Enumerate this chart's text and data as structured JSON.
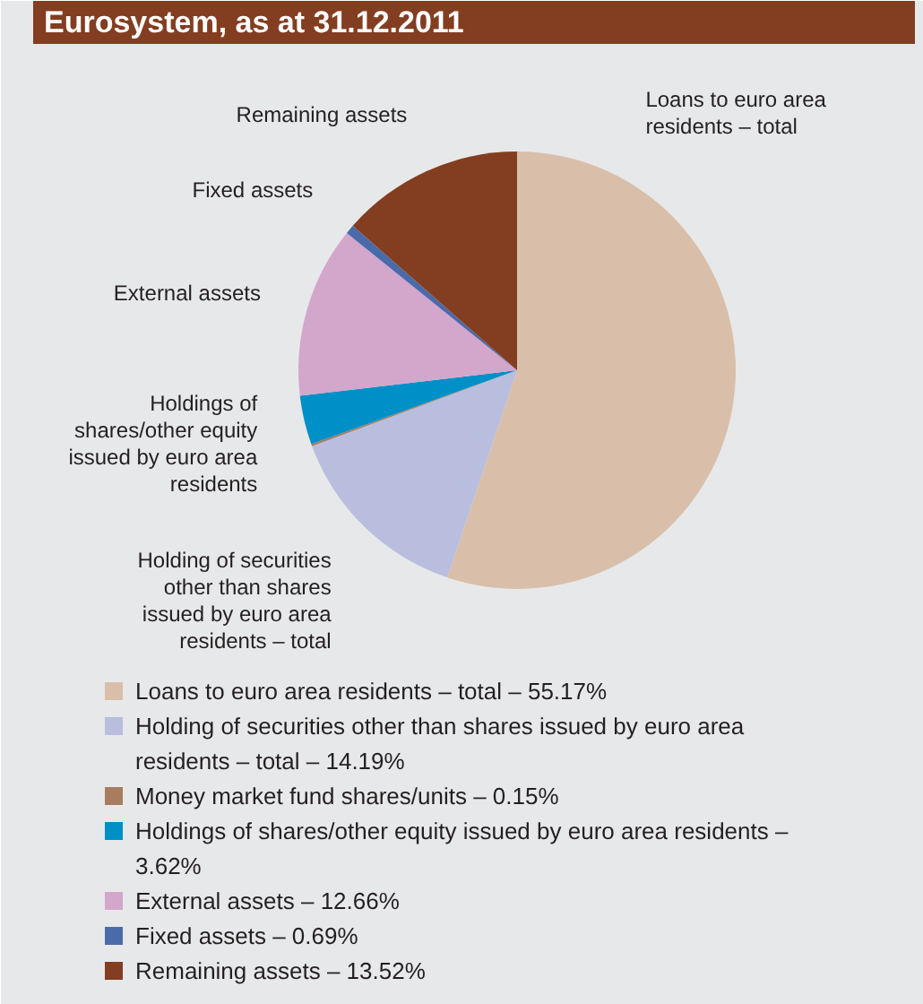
{
  "chart_data": {
    "type": "pie",
    "title": "Eurosystem, as at 31.12.2011",
    "categories": [
      "Loans to euro area residents – total – 55.17%",
      "Holding of securities other than shares issued by euro area residents – total – 14.19%",
      "Money market fund shares/units – 0.15%",
      "Holdings of shares/other equity issued by euro area residents – 3.62%",
      "External assets – 12.66%",
      "Fixed assets – 0.69%",
      "Remaining assets – 13.52%"
    ],
    "values": [
      55.17,
      14.19,
      0.15,
      3.62,
      12.66,
      0.69,
      13.52
    ],
    "colors": [
      "#d9bfa9",
      "#b9bedf",
      "#a97c5f",
      "#0090c8",
      "#d3a6cc",
      "#4a6aaa",
      "#833d20"
    ],
    "legend": "bottom",
    "annotations": [
      {
        "text": "Loans to euro area residents – total",
        "x": "Loans to euro area residents – total – 55.17%"
      },
      {
        "text": "Holding of securities other than shares issued by euro area residents – total",
        "x": "Holding of securities other than shares issued by euro area residents – total – 14.19%"
      },
      {
        "text": "Holdings of shares/other equity issued by euro area residents",
        "x": "Holdings of shares/other equity issued by euro area residents – 3.62%"
      },
      {
        "text": "External assets",
        "x": "External assets – 12.66%"
      },
      {
        "text": "Fixed assets",
        "x": "Fixed assets – 0.69%"
      },
      {
        "text": "Remaining assets",
        "x": "Remaining assets – 13.52%"
      }
    ]
  }
}
